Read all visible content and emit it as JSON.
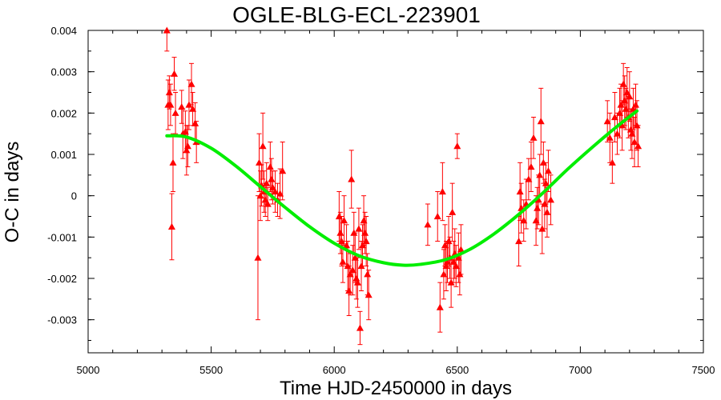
{
  "chart_data": {
    "type": "scatter",
    "title": "OGLE-BLG-ECL-223901",
    "xlabel": "Time HJD-2450000 in days",
    "ylabel": "O-C in days",
    "xlim": [
      5000,
      7500
    ],
    "ylim": [
      -0.0038,
      0.004
    ],
    "x_ticks": [
      5000,
      5500,
      6000,
      6500,
      7000,
      7500
    ],
    "x_tick_labels": [
      "5000",
      "5500",
      "6000",
      "6500",
      "7000",
      "7500"
    ],
    "y_ticks": [
      0.004,
      0.003,
      0.002,
      0.001,
      0,
      -0.001,
      -0.002,
      -0.003
    ],
    "y_tick_labels": [
      "0.004",
      "0.003",
      "0.002",
      "0.001",
      "0",
      "-0.001",
      "-0.002",
      "-0.003"
    ],
    "grid": false,
    "colors": {
      "points": "#ff0000",
      "fit": "#00ee00",
      "axes": "#000000"
    },
    "series": [
      {
        "kind": "observations",
        "marker": "triangle",
        "points": [
          {
            "x": 5320,
            "y": 0.004,
            "err": 0.0005
          },
          {
            "x": 5325,
            "y": 0.0022,
            "err": 0.0006
          },
          {
            "x": 5330,
            "y": 0.0025,
            "err": 0.0004
          },
          {
            "x": 5335,
            "y": 0.0022,
            "err": 0.0005
          },
          {
            "x": 5340,
            "y": -0.00075,
            "err": 0.0008
          },
          {
            "x": 5345,
            "y": 0.0008,
            "err": 0.0007
          },
          {
            "x": 5350,
            "y": 0.00295,
            "err": 0.0004
          },
          {
            "x": 5355,
            "y": 0.002,
            "err": 0.0005
          },
          {
            "x": 5380,
            "y": 0.00215,
            "err": 0.0004
          },
          {
            "x": 5385,
            "y": 0.0015,
            "err": 0.0006
          },
          {
            "x": 5395,
            "y": 0.00155,
            "err": 0.0005
          },
          {
            "x": 5400,
            "y": 0.0011,
            "err": 0.0006
          },
          {
            "x": 5405,
            "y": 0.0012,
            "err": 0.0005
          },
          {
            "x": 5410,
            "y": 0.0022,
            "err": 0.0006
          },
          {
            "x": 5420,
            "y": 0.0027,
            "err": 0.0005
          },
          {
            "x": 5425,
            "y": 0.0021,
            "err": 0.0004
          },
          {
            "x": 5435,
            "y": 0.00175,
            "err": 0.0005
          },
          {
            "x": 5440,
            "y": 0.0013,
            "err": 0.0005
          },
          {
            "x": 5690,
            "y": -0.0015,
            "err": 0.0015
          },
          {
            "x": 5695,
            "y": 0.0008,
            "err": 0.0007
          },
          {
            "x": 5700,
            "y": 0.0,
            "err": 0.0006
          },
          {
            "x": 5705,
            "y": 0.00025,
            "err": 0.0005
          },
          {
            "x": 5710,
            "y": 0.0012,
            "err": 0.0008
          },
          {
            "x": 5715,
            "y": 0.0001,
            "err": 0.0005
          },
          {
            "x": 5720,
            "y": -0.0001,
            "err": 0.0004
          },
          {
            "x": 5725,
            "y": 0.0003,
            "err": 0.0005
          },
          {
            "x": 5730,
            "y": -0.0002,
            "err": 0.0004
          },
          {
            "x": 5740,
            "y": 0.0007,
            "err": 0.0006
          },
          {
            "x": 5745,
            "y": 0.0004,
            "err": 0.0005
          },
          {
            "x": 5750,
            "y": 0.0002,
            "err": 0.0004
          },
          {
            "x": 5760,
            "y": 0.0001,
            "err": 0.0005
          },
          {
            "x": 5770,
            "y": -0.0001,
            "err": 0.0004
          },
          {
            "x": 5780,
            "y": 5e-05,
            "err": 0.0006
          },
          {
            "x": 5790,
            "y": 0.0006,
            "err": 0.0007
          },
          {
            "x": 6020,
            "y": -0.0005,
            "err": 0.0006
          },
          {
            "x": 6025,
            "y": -0.0009,
            "err": 0.0005
          },
          {
            "x": 6030,
            "y": -0.0011,
            "err": 0.0006
          },
          {
            "x": 6035,
            "y": -0.0016,
            "err": 0.0005
          },
          {
            "x": 6040,
            "y": -0.0006,
            "err": 0.0006
          },
          {
            "x": 6050,
            "y": -0.0012,
            "err": 0.0005
          },
          {
            "x": 6055,
            "y": -0.0017,
            "err": 0.0006
          },
          {
            "x": 6060,
            "y": -0.0023,
            "err": 0.0006
          },
          {
            "x": 6065,
            "y": -0.0019,
            "err": 0.0005
          },
          {
            "x": 6070,
            "y": 0.0004,
            "err": 0.0007
          },
          {
            "x": 6075,
            "y": -0.0018,
            "err": 0.0006
          },
          {
            "x": 6080,
            "y": -0.0009,
            "err": 0.0005
          },
          {
            "x": 6085,
            "y": -0.0015,
            "err": 0.0006
          },
          {
            "x": 6090,
            "y": -0.002,
            "err": 0.0005
          },
          {
            "x": 6095,
            "y": -0.0021,
            "err": 0.0006
          },
          {
            "x": 6100,
            "y": -0.0008,
            "err": 0.0005
          },
          {
            "x": 6105,
            "y": -0.0032,
            "err": 0.0004
          },
          {
            "x": 6110,
            "y": -0.0017,
            "err": 0.0006
          },
          {
            "x": 6115,
            "y": -0.0012,
            "err": 0.0005
          },
          {
            "x": 6120,
            "y": -0.0006,
            "err": 0.0006
          },
          {
            "x": 6125,
            "y": -0.0009,
            "err": 0.0005
          },
          {
            "x": 6130,
            "y": -0.0011,
            "err": 0.0006
          },
          {
            "x": 6135,
            "y": -0.0019,
            "err": 0.0005
          },
          {
            "x": 6140,
            "y": -0.0024,
            "err": 0.0006
          },
          {
            "x": 6380,
            "y": -0.0007,
            "err": 0.0005
          },
          {
            "x": 6420,
            "y": -0.0005,
            "err": 0.0006
          },
          {
            "x": 6430,
            "y": -0.0027,
            "err": 0.0006
          },
          {
            "x": 6440,
            "y": 0.0001,
            "err": 0.0007
          },
          {
            "x": 6445,
            "y": -0.0019,
            "err": 0.0006
          },
          {
            "x": 6450,
            "y": -0.0012,
            "err": 0.0005
          },
          {
            "x": 6455,
            "y": -0.0017,
            "err": 0.0006
          },
          {
            "x": 6460,
            "y": -0.0016,
            "err": 0.0005
          },
          {
            "x": 6465,
            "y": -0.0011,
            "err": 0.0006
          },
          {
            "x": 6470,
            "y": -0.0015,
            "err": 0.0005
          },
          {
            "x": 6475,
            "y": -0.0021,
            "err": 0.0006
          },
          {
            "x": 6480,
            "y": -0.0004,
            "err": 0.0007
          },
          {
            "x": 6485,
            "y": -0.0016,
            "err": 0.0005
          },
          {
            "x": 6490,
            "y": -0.0014,
            "err": 0.0006
          },
          {
            "x": 6495,
            "y": -0.0017,
            "err": 0.0005
          },
          {
            "x": 6500,
            "y": 0.0012,
            "err": 0.0003
          },
          {
            "x": 6505,
            "y": -0.0015,
            "err": 0.0006
          },
          {
            "x": 6510,
            "y": -0.0019,
            "err": 0.0005
          },
          {
            "x": 6515,
            "y": -0.0013,
            "err": 0.0006
          },
          {
            "x": 6750,
            "y": -0.0011,
            "err": 0.0006
          },
          {
            "x": 6755,
            "y": 0.0001,
            "err": 0.0007
          },
          {
            "x": 6760,
            "y": -0.0003,
            "err": 0.0006
          },
          {
            "x": 6770,
            "y": -0.0006,
            "err": 0.0005
          },
          {
            "x": 6780,
            "y": -0.0002,
            "err": 0.0006
          },
          {
            "x": 6790,
            "y": 0.0004,
            "err": 0.0005
          },
          {
            "x": 6800,
            "y": 0.0007,
            "err": 0.0006
          },
          {
            "x": 6810,
            "y": 0.0014,
            "err": 0.0005
          },
          {
            "x": 6820,
            "y": -0.0006,
            "err": 0.0006
          },
          {
            "x": 6825,
            "y": -0.0003,
            "err": 0.0005
          },
          {
            "x": 6830,
            "y": -0.0001,
            "err": 0.0006
          },
          {
            "x": 6835,
            "y": 0.0005,
            "err": 0.0005
          },
          {
            "x": 6840,
            "y": 0.0018,
            "err": 0.0008
          },
          {
            "x": 6845,
            "y": -0.0008,
            "err": 0.0006
          },
          {
            "x": 6850,
            "y": 0.0008,
            "err": 0.0005
          },
          {
            "x": 6855,
            "y": -0.0002,
            "err": 0.0006
          },
          {
            "x": 6860,
            "y": 0.0003,
            "err": 0.0005
          },
          {
            "x": 6865,
            "y": -0.0004,
            "err": 0.0006
          },
          {
            "x": 6870,
            "y": 0.0006,
            "err": 0.0005
          },
          {
            "x": 6880,
            "y": -0.0001,
            "err": 0.0006
          },
          {
            "x": 7110,
            "y": 0.0018,
            "err": 0.0005
          },
          {
            "x": 7120,
            "y": 0.0014,
            "err": 0.0006
          },
          {
            "x": 7130,
            "y": 0.0008,
            "err": 0.0005
          },
          {
            "x": 7140,
            "y": 0.0019,
            "err": 0.0006
          },
          {
            "x": 7150,
            "y": 0.0015,
            "err": 0.0005
          },
          {
            "x": 7160,
            "y": 0.002,
            "err": 0.0006
          },
          {
            "x": 7165,
            "y": 0.0022,
            "err": 0.0005
          },
          {
            "x": 7170,
            "y": 0.0017,
            "err": 0.0006
          },
          {
            "x": 7175,
            "y": 0.0027,
            "err": 0.0005
          },
          {
            "x": 7180,
            "y": 0.0023,
            "err": 0.0006
          },
          {
            "x": 7185,
            "y": 0.0021,
            "err": 0.0005
          },
          {
            "x": 7190,
            "y": 0.0025,
            "err": 0.0006
          },
          {
            "x": 7195,
            "y": 0.0019,
            "err": 0.0005
          },
          {
            "x": 7200,
            "y": 0.0024,
            "err": 0.0006
          },
          {
            "x": 7205,
            "y": 0.0016,
            "err": 0.0005
          },
          {
            "x": 7210,
            "y": 0.0015,
            "err": 0.0006
          },
          {
            "x": 7215,
            "y": 0.0021,
            "err": 0.0005
          },
          {
            "x": 7220,
            "y": 0.0013,
            "err": 0.0006
          },
          {
            "x": 7225,
            "y": 0.0022,
            "err": 0.0005
          },
          {
            "x": 7230,
            "y": 0.0017,
            "err": 0.0006
          },
          {
            "x": 7235,
            "y": 0.0012,
            "err": 0.0005
          }
        ]
      },
      {
        "kind": "fit",
        "line": "thick",
        "points": [
          {
            "x": 5320,
            "y": 0.00145
          },
          {
            "x": 5400,
            "y": 0.00142
          },
          {
            "x": 5500,
            "y": 0.00115
          },
          {
            "x": 5600,
            "y": 0.00072
          },
          {
            "x": 5700,
            "y": 0.00022
          },
          {
            "x": 5800,
            "y": -0.00028
          },
          {
            "x": 5900,
            "y": -0.00075
          },
          {
            "x": 6000,
            "y": -0.00115
          },
          {
            "x": 6100,
            "y": -0.00145
          },
          {
            "x": 6200,
            "y": -0.00162
          },
          {
            "x": 6280,
            "y": -0.00168
          },
          {
            "x": 6350,
            "y": -0.00166
          },
          {
            "x": 6450,
            "y": -0.00155
          },
          {
            "x": 6550,
            "y": -0.0013
          },
          {
            "x": 6650,
            "y": -0.00092
          },
          {
            "x": 6750,
            "y": -0.00045
          },
          {
            "x": 6850,
            "y": 8e-05
          },
          {
            "x": 6950,
            "y": 0.00065
          },
          {
            "x": 7050,
            "y": 0.00118
          },
          {
            "x": 7150,
            "y": 0.00168
          },
          {
            "x": 7230,
            "y": 0.00205
          }
        ]
      }
    ]
  }
}
